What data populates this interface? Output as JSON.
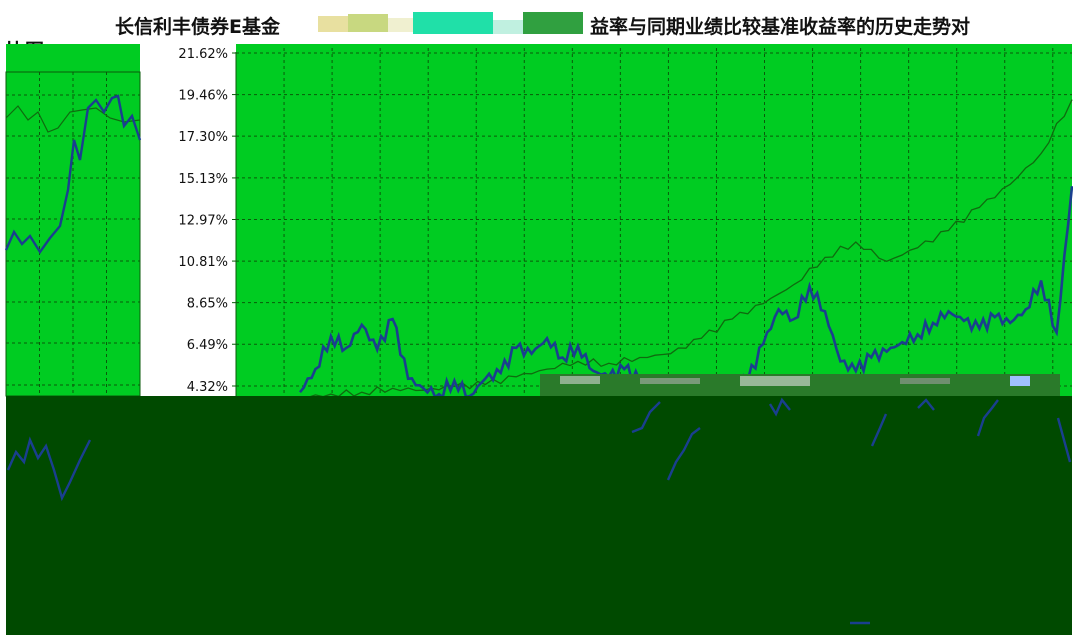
{
  "colors": {
    "plot_bg": "#00cc22",
    "dark_band": "#004a00",
    "fund_line": "#1a3f8f",
    "benchmark_line": "#0f6b0f",
    "grid": "#0a5a0a"
  },
  "chart_data": {
    "type": "line",
    "title": "长信利丰债券E基金",
    "title_suffix": "益率与同期业绩比较基准收益率的历史走势对",
    "title_line2": "比图",
    "y_ticks": [
      "21.62%",
      "19.46%",
      "17.30%",
      "15.13%",
      "12.97%",
      "10.81%",
      "8.65%",
      "6.49%",
      "4.32%"
    ],
    "ylim": [
      4.32,
      21.62
    ],
    "grid": true,
    "series": [
      {
        "x": [
          0,
          2,
          4,
          6,
          8,
          10,
          12,
          14,
          16,
          18,
          20,
          22,
          24,
          26,
          28,
          30,
          32,
          34,
          36,
          38,
          40,
          42,
          44,
          46,
          48,
          50,
          52,
          54,
          56,
          58,
          60,
          62,
          64,
          66,
          68,
          70,
          72,
          74,
          76,
          78,
          80,
          82,
          84,
          86,
          88,
          90,
          92,
          94,
          96,
          98,
          100
        ],
        "values": [
          4.0,
          5.2,
          6.9,
          6.3,
          7.5,
          6.2,
          7.8,
          4.7,
          4.2,
          3.9,
          4.6,
          3.8,
          4.7,
          5.0,
          6.3,
          6.0,
          6.8,
          5.8,
          6.4,
          5.1,
          4.8,
          5.2,
          4.6,
          4.3,
          4.1,
          3.6,
          4.1,
          3.8,
          4.2,
          4.6,
          6.5,
          8.3,
          7.8,
          9.5,
          8.2,
          5.6,
          5.1,
          5.8,
          6.1,
          6.6,
          7.0,
          7.6,
          8.2,
          7.7,
          7.3,
          7.9,
          7.6,
          8.3,
          9.8,
          7.1,
          14.7
        ]
      },
      {
        "x": [
          0,
          4,
          8,
          12,
          16,
          20,
          24,
          28,
          32,
          36,
          40,
          44,
          48,
          52,
          56,
          60,
          64,
          68,
          72,
          76,
          80,
          84,
          88,
          92,
          96,
          100
        ],
        "values": [
          3.7,
          3.9,
          4.0,
          4.2,
          4.1,
          4.3,
          4.4,
          4.8,
          5.2,
          5.6,
          5.5,
          5.8,
          6.0,
          6.8,
          7.8,
          8.6,
          9.6,
          11.0,
          11.8,
          10.8,
          11.5,
          12.4,
          13.6,
          14.8,
          16.4,
          19.2
        ]
      }
    ]
  }
}
